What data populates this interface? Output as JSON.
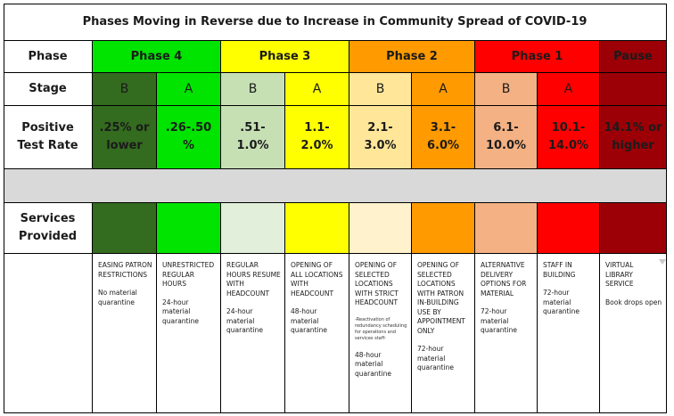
{
  "title": "Phases Moving in Reverse due to Increase in Community Spread of COVID-19",
  "row_labels": {
    "phase": "Phase",
    "stage": "Stage",
    "positive_test_rate": "Positive Test Rate",
    "services_provided": "Services Provided"
  },
  "phases": [
    {
      "label": "Phase 4",
      "color": "#00e400"
    },
    {
      "label": "Phase 3",
      "color": "#ffff00"
    },
    {
      "label": "Phase 2",
      "color": "#ff9a00"
    },
    {
      "label": "Phase 1",
      "color": "#ff0000"
    },
    {
      "label": "Pause",
      "color": "#9c0006"
    }
  ],
  "stages": [
    {
      "stage": "B",
      "rate": ".25% or lower",
      "color": "#336b1f",
      "services": {
        "title": "EASING PATRON RESTRICTIONS",
        "detail": "No material quarantine"
      }
    },
    {
      "stage": "A",
      "rate": ".26-.50 %",
      "color": "#00e400",
      "services": {
        "title": "UNRESTRICTED REGULAR HOURS",
        "detail": "24-hour material quarantine"
      }
    },
    {
      "stage": "B",
      "rate": ".51-1.0%",
      "color": "#c6e0b4",
      "services": {
        "title": "REGULAR HOURS RESUME WITH HEADCOUNT",
        "detail": "24-hour material quarantine"
      }
    },
    {
      "stage": "A",
      "rate": "1.1-2.0%",
      "color": "#ffff00",
      "services": {
        "title": "OPENING OF ALL LOCATIONS WITH HEADCOUNT",
        "detail": "48-hour material quarantine"
      }
    },
    {
      "stage": "B",
      "rate": "2.1-3.0%",
      "color": "#ffe699",
      "services": {
        "title": "OPENING OF SELECTED LOCATIONS WITH STRICT HEADCOUNT",
        "note": "-Reactivation of redundancy scheduling for operations and services staff-",
        "detail": "48-hour material quarantine"
      }
    },
    {
      "stage": "A",
      "rate": "3.1-6.0%",
      "color": "#ff9a00",
      "services": {
        "title": "OPENING OF SELECTED LOCATIONS WITH PATRON IN-BUILDING USE BY APPOINTMENT ONLY",
        "detail": "72-hour material quarantine"
      }
    },
    {
      "stage": "B",
      "rate": "6.1-10.0%",
      "color": "#f4b183",
      "services": {
        "title": "ALTERNATIVE DELIVERY OPTIONS FOR MATERIAL",
        "detail": "72-hour material quarantine"
      }
    },
    {
      "stage": "A",
      "rate": "10.1-14.0%",
      "color": "#ff0000",
      "services": {
        "title": "STAFF IN BUILDING",
        "detail": "72-hour material quarantine"
      }
    },
    {
      "stage": "",
      "rate": "14.1% or higher",
      "color": "#9c0006",
      "services": {
        "title": "VIRTUAL LIBRARY SERVICE",
        "detail": "Book drops open"
      }
    }
  ],
  "services_colors": [
    "#336b1f",
    "#00e400",
    "#e2efda",
    "#ffff00",
    "#fff2cc",
    "#ff9a00",
    "#f4b183",
    "#ff0000",
    "#9c0006"
  ],
  "gray_row_color": "#d9d9d9"
}
